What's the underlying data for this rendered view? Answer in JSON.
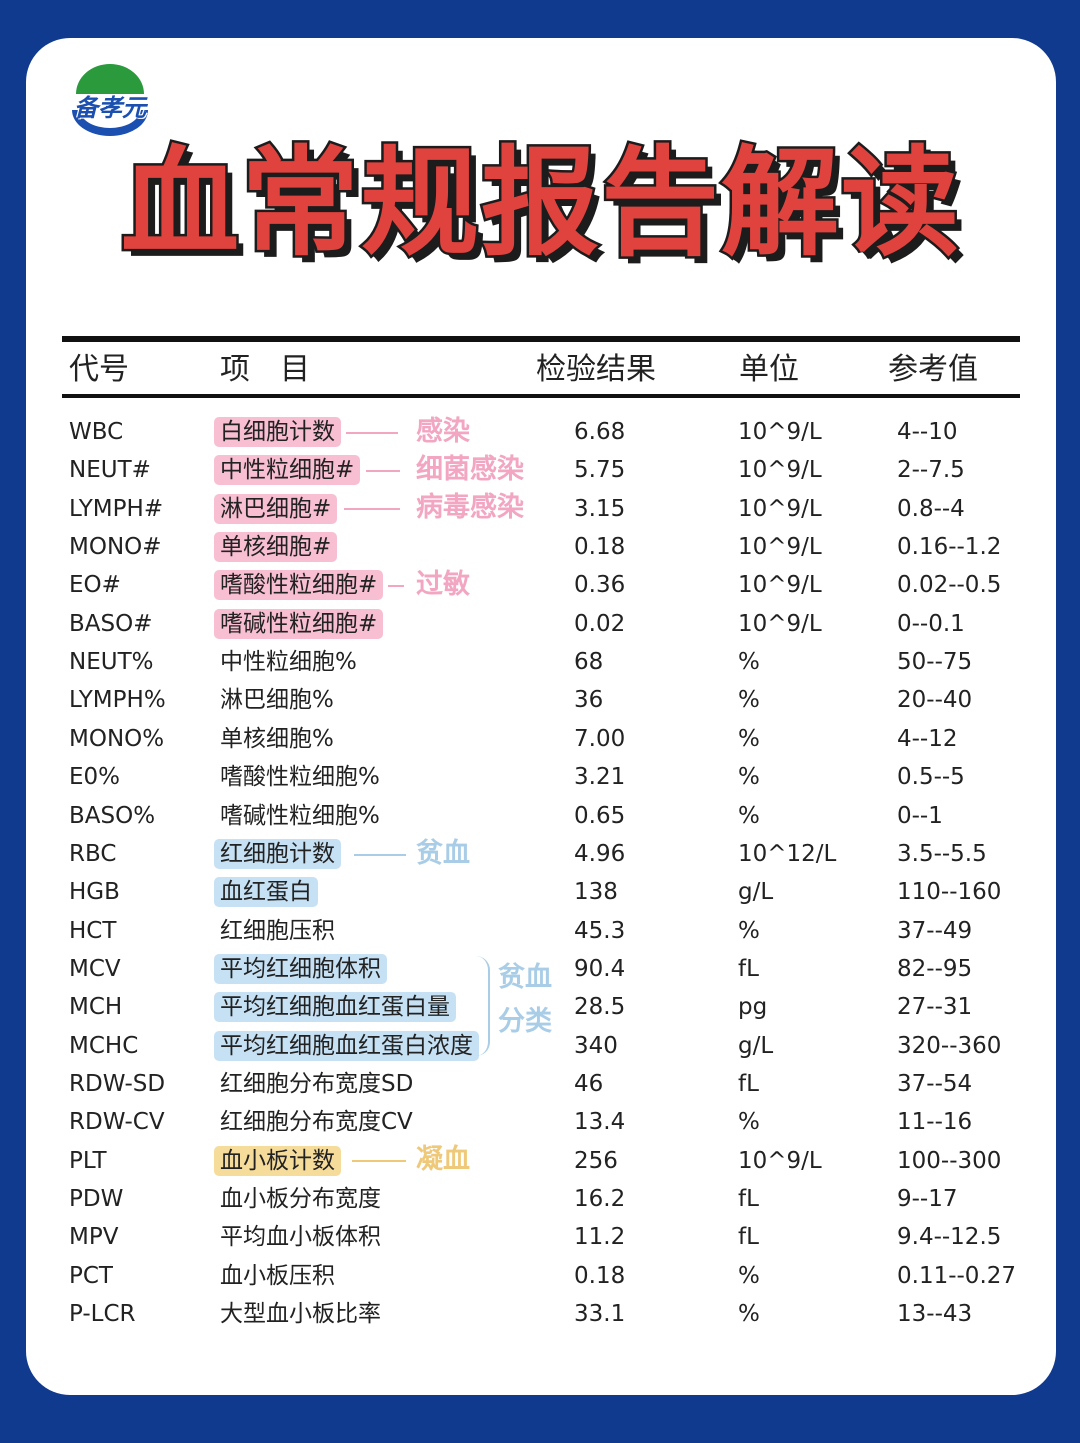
{
  "logo": {
    "text": "备孝元",
    "colors": {
      "green": "#2a9a3c",
      "blue": "#1b4fb0"
    }
  },
  "title": "血常规报告解读",
  "header": {
    "code": "代号",
    "item": "项　目",
    "result": "检验结果",
    "unit": "单位",
    "ref": "参考值"
  },
  "rows": [
    {
      "code": "WBC",
      "item": "白细胞计数",
      "result": "6.68",
      "unit": "10^9/L",
      "ref": "4--10",
      "highlight": "pink"
    },
    {
      "code": "NEUT#",
      "item": "中性粒细胞#",
      "result": "5.75",
      "unit": "10^9/L",
      "ref": "2--7.5",
      "highlight": "pink"
    },
    {
      "code": "LYMPH#",
      "item": "淋巴细胞#",
      "result": "3.15",
      "unit": "10^9/L",
      "ref": "0.8--4",
      "highlight": "pink"
    },
    {
      "code": "MONO#",
      "item": "单核细胞#",
      "result": "0.18",
      "unit": "10^9/L",
      "ref": "0.16--1.2",
      "highlight": "pink"
    },
    {
      "code": "EO#",
      "item": "嗜酸性粒细胞#",
      "result": "0.36",
      "unit": "10^9/L",
      "ref": "0.02--0.5",
      "highlight": "pink"
    },
    {
      "code": "BASO#",
      "item": "嗜碱性粒细胞#",
      "result": "0.02",
      "unit": "10^9/L",
      "ref": "0--0.1",
      "highlight": "pink"
    },
    {
      "code": "NEUT%",
      "item": "中性粒细胞%",
      "result": "68",
      "unit": "%",
      "ref": "50--75",
      "highlight": ""
    },
    {
      "code": "LYMPH%",
      "item": "淋巴细胞%",
      "result": "36",
      "unit": "%",
      "ref": "20--40",
      "highlight": ""
    },
    {
      "code": "MONO%",
      "item": "单核细胞%",
      "result": "7.00",
      "unit": "%",
      "ref": "4--12",
      "highlight": ""
    },
    {
      "code": "E0%",
      "item": "嗜酸性粒细胞%",
      "result": "3.21",
      "unit": "%",
      "ref": "0.5--5",
      "highlight": ""
    },
    {
      "code": "BASO%",
      "item": "嗜碱性粒细胞%",
      "result": "0.65",
      "unit": "%",
      "ref": "0--1",
      "highlight": ""
    },
    {
      "code": "RBC",
      "item": "红细胞计数",
      "result": "4.96",
      "unit": "10^12/L",
      "ref": "3.5--5.5",
      "highlight": "blue"
    },
    {
      "code": "HGB",
      "item": "血红蛋白",
      "result": "138",
      "unit": "g/L",
      "ref": "110--160",
      "highlight": "blue"
    },
    {
      "code": "HCT",
      "item": "红细胞压积",
      "result": "45.3",
      "unit": "%",
      "ref": "37--49",
      "highlight": ""
    },
    {
      "code": "MCV",
      "item": "平均红细胞体积",
      "result": "90.4",
      "unit": "fL",
      "ref": "82--95",
      "highlight": "blue"
    },
    {
      "code": "MCH",
      "item": "平均红细胞血红蛋白量",
      "result": "28.5",
      "unit": "pg",
      "ref": "27--31",
      "highlight": "blue"
    },
    {
      "code": "MCHC",
      "item": "平均红细胞血红蛋白浓度",
      "result": "340",
      "unit": "g/L",
      "ref": "320--360",
      "highlight": "blue"
    },
    {
      "code": "RDW-SD",
      "item": "红细胞分布宽度SD",
      "result": "46",
      "unit": "fL",
      "ref": "37--54",
      "highlight": ""
    },
    {
      "code": "RDW-CV",
      "item": "红细胞分布宽度CV",
      "result": "13.4",
      "unit": "%",
      "ref": "11--16",
      "highlight": ""
    },
    {
      "code": "PLT",
      "item": "血小板计数",
      "result": "256",
      "unit": "10^9/L",
      "ref": "100--300",
      "highlight": "yellow"
    },
    {
      "code": "PDW",
      "item": "血小板分布宽度",
      "result": "16.2",
      "unit": "fL",
      "ref": "9--17",
      "highlight": ""
    },
    {
      "code": "MPV",
      "item": "平均血小板体积",
      "result": "11.2",
      "unit": "fL",
      "ref": "9.4--12.5",
      "highlight": ""
    },
    {
      "code": "PCT",
      "item": "血小板压积",
      "result": "0.18",
      "unit": "%",
      "ref": "0.11--0.27",
      "highlight": ""
    },
    {
      "code": "P-LCR",
      "item": "大型血小板比率",
      "result": "33.1",
      "unit": "%",
      "ref": "13--43",
      "highlight": ""
    }
  ],
  "annotations": {
    "infection": "感染",
    "bacterial": "细菌感染",
    "viral": "病毒感染",
    "allergy": "过敏",
    "anemia": "贫血",
    "anemia_class_1": "贫血",
    "anemia_class_2": "分类",
    "coagulation": "凝血"
  },
  "colors": {
    "title": "#e0423d",
    "pink": "#f2a6c1",
    "blue": "#a9cde7",
    "yellow": "#efc97a",
    "frame": "#103a8e"
  }
}
